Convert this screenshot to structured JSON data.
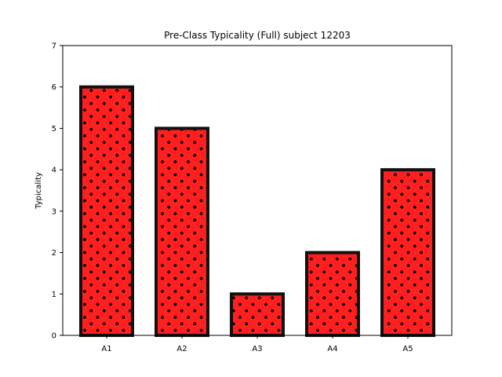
{
  "chart_data": {
    "type": "bar",
    "title": "Pre-Class Typicality (Full) subject 12203",
    "xlabel": "",
    "ylabel": "Typicality",
    "categories": [
      "A1",
      "A2",
      "A3",
      "A4",
      "A5"
    ],
    "values": [
      6,
      5,
      1,
      2,
      4
    ],
    "ylim": [
      0,
      7
    ],
    "yticks": [
      0,
      1,
      2,
      3,
      4,
      5,
      6,
      7
    ],
    "grid": false,
    "bar_color": "#ff1f1f",
    "edge_color": "#111111",
    "hatch": "dots"
  }
}
